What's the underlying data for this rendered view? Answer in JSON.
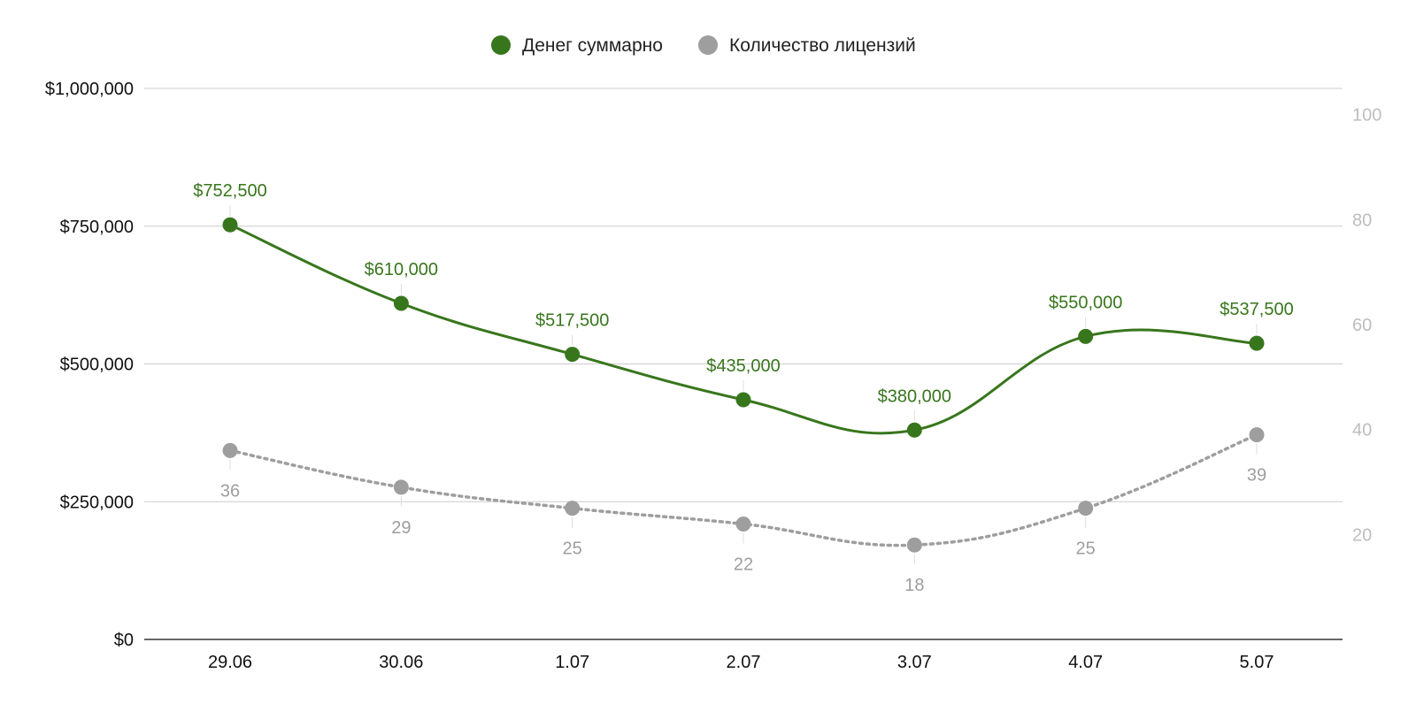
{
  "chart_data": {
    "type": "line",
    "categories": [
      "29.06",
      "30.06",
      "1.07",
      "2.07",
      "3.07",
      "4.07",
      "5.07"
    ],
    "series": [
      {
        "name": "Денег суммарно",
        "axis": "left",
        "color": "#38761d",
        "style": "solid-smooth",
        "values": [
          752500,
          610000,
          517500,
          435000,
          380000,
          550000,
          537500
        ],
        "labels": [
          "$752,500",
          "$610,000",
          "$517,500",
          "$435,000",
          "$380,000",
          "$550,000",
          "$537,500"
        ]
      },
      {
        "name": "Количество лицензий",
        "axis": "right",
        "color": "#9e9e9e",
        "style": "dotted-smooth",
        "values": [
          36,
          29,
          25,
          22,
          18,
          25,
          39
        ],
        "labels": [
          "36",
          "29",
          "25",
          "22",
          "18",
          "25",
          "39"
        ]
      }
    ],
    "y_left": {
      "range": [
        0,
        1000000
      ],
      "ticks": [
        0,
        250000,
        500000,
        750000,
        1000000
      ],
      "tick_labels": [
        "$0",
        "$250,000",
        "$500,000",
        "$750,000",
        "$1,000,000"
      ]
    },
    "y_right": {
      "range": [
        0,
        105
      ],
      "ticks": [
        20,
        40,
        60,
        80,
        100
      ],
      "tick_labels": [
        "20",
        "40",
        "60",
        "80",
        "100"
      ]
    },
    "legend_position": "top-center",
    "grid": true
  }
}
